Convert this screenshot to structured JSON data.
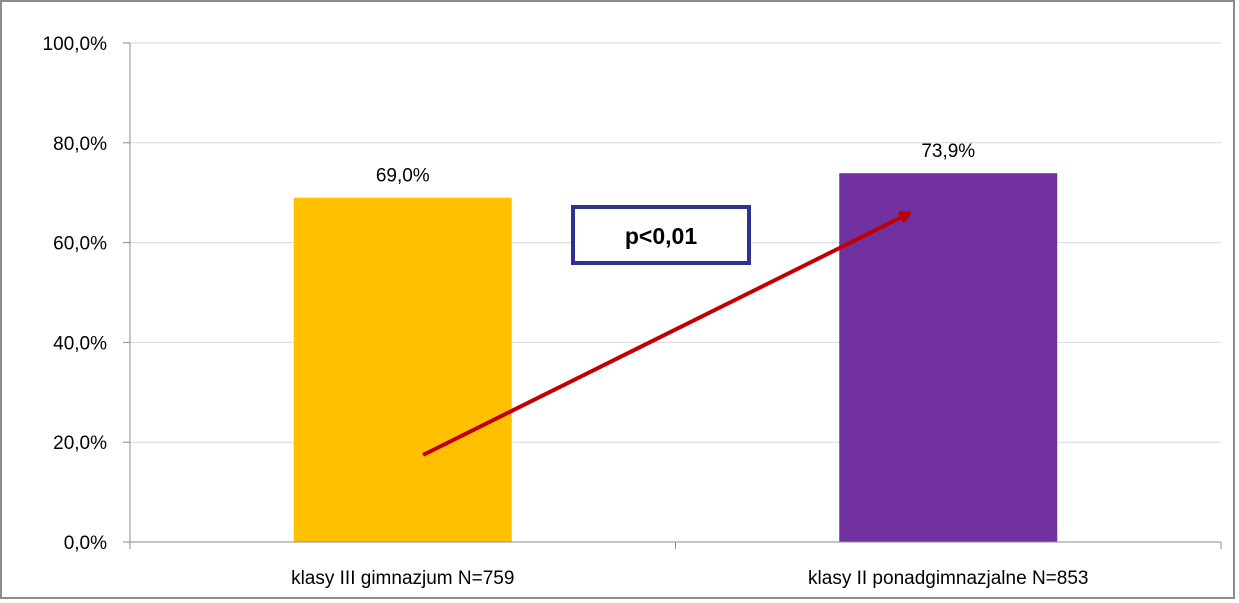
{
  "chart_data": {
    "type": "bar",
    "categories": [
      "klasy III gimnazjum  N=759",
      "klasy II ponadgimnazjalne  N=853"
    ],
    "values": [
      69.0,
      73.9
    ],
    "value_labels": [
      "69,0%",
      "73,9%"
    ],
    "colors": [
      "#FFC000",
      "#7030A0"
    ],
    "ylim": [
      0,
      100
    ],
    "yticks": [
      0,
      20,
      40,
      60,
      80,
      100
    ],
    "ytick_labels": [
      "0,0%",
      "20,0%",
      "40,0%",
      "60,0%",
      "80,0%",
      "100,0%"
    ],
    "grid": true,
    "legend": "none",
    "annotation": {
      "text": "p<0,01",
      "box_border_color": "#2E3192",
      "arrow_color": "#C00000"
    }
  }
}
